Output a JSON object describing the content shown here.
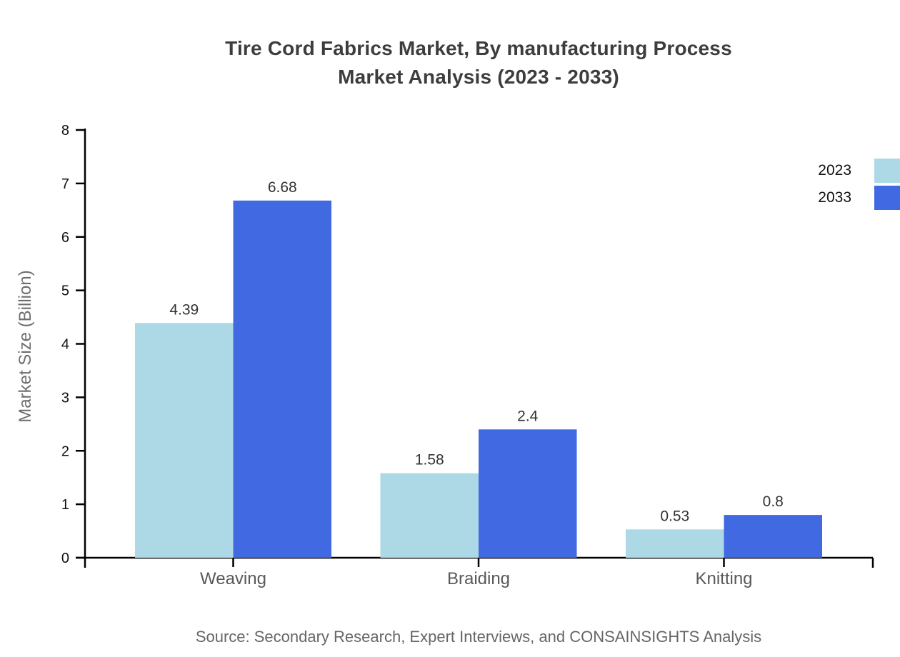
{
  "title": {
    "line1": "Tire Cord Fabrics Market, By manufacturing Process",
    "line2": "Market Analysis (2023 - 2033)"
  },
  "source": "Source: Secondary Research, Expert Interviews, and CONSAINSIGHTS Analysis",
  "colors": {
    "series_2023": "#ADD8E6",
    "series_2033": "#4169E1",
    "axis": "#000000",
    "title_text": "#3d3d3d",
    "tick_label_text": "#111111",
    "category_label_text": "#595959",
    "value_label_text": "#333333",
    "axis_title_text": "#6e6e6e",
    "source_text": "#666666"
  },
  "chart_data": {
    "type": "bar",
    "title": "Tire Cord Fabrics Market, By manufacturing Process Market Analysis (2023 - 2033)",
    "categories": [
      "Weaving",
      "Braiding",
      "Knitting"
    ],
    "series": [
      {
        "name": "2023",
        "color": "#ADD8E6",
        "values": [
          4.39,
          1.58,
          0.53
        ]
      },
      {
        "name": "2033",
        "color": "#4169E1",
        "values": [
          6.68,
          2.4,
          0.8
        ]
      }
    ],
    "value_labels": [
      [
        "4.39",
        "1.58",
        "0.53"
      ],
      [
        "6.68",
        "2.4",
        "0.8"
      ]
    ],
    "xlabel": "",
    "ylabel": "Market Size (Billion)",
    "ylim": [
      0,
      8
    ],
    "yticks": [
      0,
      1,
      2,
      3,
      4,
      5,
      6,
      7,
      8
    ],
    "grid": false,
    "legend_position": "top-right"
  }
}
